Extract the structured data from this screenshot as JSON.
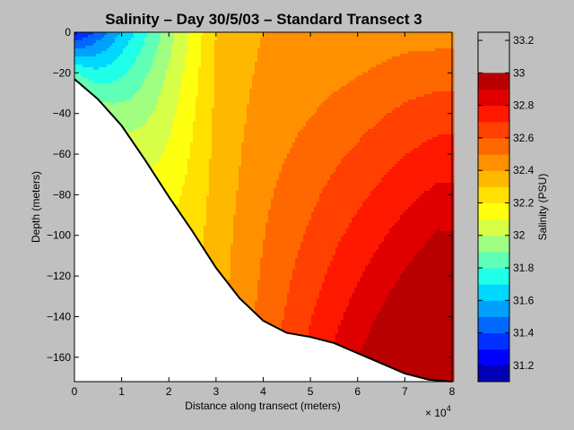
{
  "chart_data": {
    "type": "heatmap",
    "title": "Salinity – Day 30/5/03 – Standard Transect 3",
    "xlabel": "Distance along transect (meters)",
    "ylabel": "Depth (meters)",
    "x_exponent_label": "× 10",
    "x_exponent": "4",
    "xlim": [
      0,
      80000
    ],
    "ylim": [
      -172,
      0
    ],
    "x_ticks": [
      0,
      10000,
      20000,
      30000,
      40000,
      50000,
      60000,
      70000,
      80000
    ],
    "x_tick_labels": [
      "0",
      "1",
      "2",
      "3",
      "4",
      "5",
      "6",
      "7",
      "8"
    ],
    "y_ticks": [
      0,
      -20,
      -40,
      -60,
      -80,
      -100,
      -120,
      -140,
      -160
    ],
    "y_tick_labels": [
      "0",
      "−20",
      "−40",
      "−60",
      "−80",
      "−100",
      "−120",
      "−140",
      "−160"
    ],
    "colorbar": {
      "label": "Salinity (PSU)",
      "range": [
        31.1,
        33.25
      ],
      "ticks": [
        31.2,
        31.4,
        31.6,
        31.8,
        32,
        32.2,
        32.4,
        32.6,
        32.8,
        33,
        33.2
      ],
      "tick_labels": [
        "31.2",
        "31.4",
        "31.6",
        "31.8",
        "32",
        "32.2",
        "32.4",
        "32.6",
        "32.8",
        "33",
        "33.2"
      ],
      "levels": [
        31.1,
        31.2,
        31.3,
        31.4,
        31.5,
        31.6,
        31.7,
        31.8,
        31.9,
        32.0,
        32.1,
        32.2,
        32.3,
        32.4,
        32.5,
        32.6,
        32.7,
        32.8,
        32.9,
        33.0,
        33.1,
        33.25
      ],
      "colors": [
        "#0000b4",
        "#0000ff",
        "#0030ff",
        "#0068ff",
        "#00a0ff",
        "#00d8ff",
        "#20ffe8",
        "#60ffb8",
        "#a0ff80",
        "#d8ff48",
        "#ffff10",
        "#ffe000",
        "#ffb800",
        "#ff9000",
        "#ff6800",
        "#ff4000",
        "#ff1800",
        "#e00000",
        "#b80000"
      ]
    },
    "bottom_profile": {
      "x": [
        0,
        5000,
        10000,
        15000,
        20000,
        25000,
        30000,
        35000,
        40000,
        45000,
        50000,
        55000,
        60000,
        65000,
        70000,
        75000,
        80000
      ],
      "depth": [
        -23,
        -33,
        -46,
        -63,
        -81,
        -98,
        -116,
        -131,
        -142,
        -148,
        -150,
        -153,
        -158,
        -163,
        -168,
        -171,
        -172
      ]
    },
    "surface_salinity_x": [
      0,
      10000,
      20000,
      30000,
      40000,
      50000,
      60000,
      70000,
      80000
    ],
    "surface_salinity": [
      31.25,
      31.6,
      31.95,
      32.3,
      32.4,
      32.4,
      32.42,
      32.45,
      32.45
    ]
  }
}
